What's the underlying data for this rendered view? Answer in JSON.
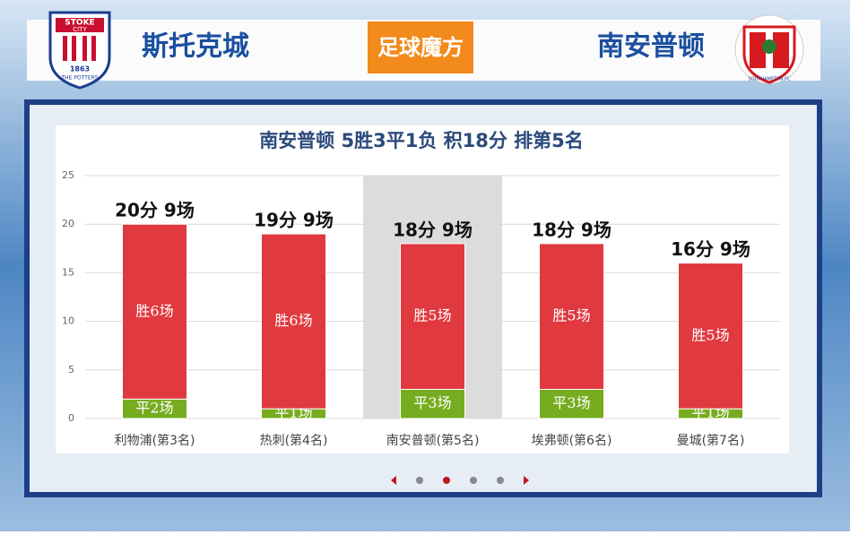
{
  "header": {
    "home_team": "斯托克城",
    "away_team": "南安普顿",
    "logo": "足球魔方",
    "home_badge": [
      "STOKE",
      "CITY",
      "1863",
      "THE POTTERS"
    ],
    "away_badge": "SOUTHAMPTON FC"
  },
  "chart_data": {
    "type": "stacked_bar",
    "title": "南安普顿 5胜3平1负 积18分 排第5名",
    "categories": [
      "利物浦(第3名)",
      "热刺(第4名)",
      "南安普顿(第5名)",
      "埃弗顿(第6名)",
      "曼城(第7名)"
    ],
    "series": [
      {
        "color": "#76ac1f",
        "values": [
          2,
          1,
          3,
          3,
          1
        ],
        "labels": [
          "平2场",
          "平1场",
          "平3场",
          "平3场",
          "平1场"
        ]
      },
      {
        "color": "#e0393f",
        "values": [
          18,
          18,
          15,
          15,
          15
        ],
        "labels": [
          "胜6场",
          "胜6场",
          "胜5场",
          "胜5场",
          "胜5场"
        ]
      }
    ],
    "total_labels": [
      "20分 9场",
      "19分 9场",
      "18分 9场",
      "18分 9场",
      "16分 9场"
    ],
    "highlight_index": 2,
    "ylim": [
      0,
      25
    ],
    "yticks": [
      0,
      5,
      10,
      15,
      20,
      25
    ],
    "grid": true
  }
}
